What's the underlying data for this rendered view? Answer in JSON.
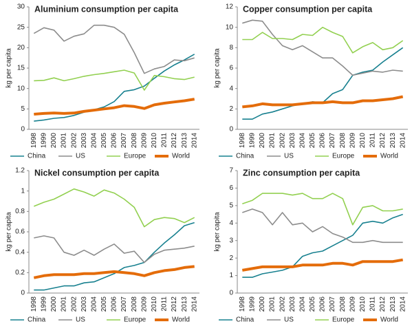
{
  "chart_data": [
    {
      "type": "line",
      "title": "Aluminium consumption per capita",
      "y_label": "kg per capita",
      "categories": [
        "1998",
        "1999",
        "2000",
        "2001",
        "2002",
        "2003",
        "2004",
        "2005",
        "2006",
        "2007",
        "2008",
        "2009",
        "2010",
        "2011",
        "2012",
        "2013",
        "2014"
      ],
      "ylim": [
        0,
        30
      ],
      "yticks": [
        0,
        5,
        10,
        15,
        20,
        25,
        30
      ],
      "series": [
        {
          "name": "China",
          "color": "#17808f",
          "values": [
            2.0,
            2.3,
            2.7,
            2.9,
            3.4,
            4.2,
            4.8,
            5.5,
            6.8,
            9.3,
            9.7,
            10.6,
            12.5,
            14.3,
            15.8,
            17.0,
            18.4
          ]
        },
        {
          "name": "US",
          "color": "#8c8c8c",
          "values": [
            23.5,
            24.9,
            24.3,
            21.6,
            22.8,
            23.4,
            25.5,
            25.5,
            25.0,
            23.3,
            18.8,
            13.7,
            14.8,
            15.4,
            17.0,
            16.8,
            17.5
          ]
        },
        {
          "name": "Europe",
          "color": "#92d050",
          "values": [
            11.9,
            12.0,
            12.6,
            11.9,
            12.4,
            13.0,
            13.4,
            13.7,
            14.1,
            14.5,
            13.8,
            9.6,
            13.2,
            12.9,
            12.4,
            12.2,
            12.8
          ]
        },
        {
          "name": "World",
          "color": "#e46c0a",
          "values": [
            3.7,
            3.9,
            4.0,
            3.9,
            4.0,
            4.4,
            4.7,
            5.0,
            5.3,
            5.8,
            5.6,
            5.1,
            6.0,
            6.4,
            6.7,
            7.0,
            7.4
          ]
        }
      ]
    },
    {
      "type": "line",
      "title": "Copper consumption per capita",
      "y_label": "kg per capita",
      "categories": [
        "1998",
        "1999",
        "2000",
        "2001",
        "2002",
        "2003",
        "2004",
        "2005",
        "2006",
        "2007",
        "2008",
        "2009",
        "2010",
        "2011",
        "2012",
        "2013",
        "2014"
      ],
      "ylim": [
        0,
        12
      ],
      "yticks": [
        0,
        2,
        4,
        6,
        8,
        10,
        12
      ],
      "series": [
        {
          "name": "China",
          "color": "#17808f",
          "values": [
            1.0,
            1.0,
            1.5,
            1.7,
            2.0,
            2.3,
            2.5,
            2.7,
            2.6,
            3.5,
            3.9,
            5.3,
            5.6,
            5.8,
            6.6,
            7.3,
            8.0
          ]
        },
        {
          "name": "US",
          "color": "#8c8c8c",
          "values": [
            10.4,
            10.7,
            10.6,
            9.3,
            8.2,
            7.8,
            8.2,
            7.6,
            7.0,
            7.0,
            6.2,
            5.3,
            5.5,
            5.7,
            5.6,
            5.8,
            5.7
          ]
        },
        {
          "name": "Europe",
          "color": "#92d050",
          "values": [
            8.8,
            8.8,
            9.5,
            8.9,
            8.9,
            8.8,
            9.3,
            9.2,
            10.0,
            9.5,
            9.1,
            7.5,
            8.1,
            8.5,
            7.8,
            8.0,
            8.7
          ]
        },
        {
          "name": "World",
          "color": "#e46c0a",
          "values": [
            2.2,
            2.3,
            2.5,
            2.4,
            2.4,
            2.4,
            2.5,
            2.6,
            2.6,
            2.7,
            2.6,
            2.6,
            2.8,
            2.8,
            2.9,
            3.0,
            3.2
          ]
        }
      ]
    },
    {
      "type": "line",
      "title": "Nickel consumption per capita",
      "y_label": "kg per capita",
      "categories": [
        "1998",
        "1999",
        "2000",
        "2001",
        "2002",
        "2003",
        "2004",
        "2005",
        "2006",
        "2007",
        "2008",
        "2009",
        "2010",
        "2011",
        "2012",
        "2013",
        "2014"
      ],
      "ylim": [
        0,
        1.2
      ],
      "yticks": [
        0,
        0.2,
        0.4,
        0.6,
        0.8,
        1,
        1.2
      ],
      "series": [
        {
          "name": "China",
          "color": "#17808f",
          "values": [
            0.03,
            0.03,
            0.05,
            0.07,
            0.07,
            0.1,
            0.11,
            0.15,
            0.19,
            0.25,
            0.27,
            0.3,
            0.4,
            0.49,
            0.57,
            0.66,
            0.69
          ]
        },
        {
          "name": "US",
          "color": "#8c8c8c",
          "values": [
            0.54,
            0.56,
            0.54,
            0.4,
            0.37,
            0.42,
            0.37,
            0.43,
            0.48,
            0.39,
            0.41,
            0.3,
            0.38,
            0.42,
            0.43,
            0.44,
            0.46
          ]
        },
        {
          "name": "Europe",
          "color": "#92d050",
          "values": [
            0.85,
            0.89,
            0.92,
            0.97,
            1.02,
            0.99,
            0.95,
            1.01,
            0.98,
            0.92,
            0.84,
            0.65,
            0.72,
            0.74,
            0.73,
            0.69,
            0.74
          ]
        },
        {
          "name": "World",
          "color": "#e46c0a",
          "values": [
            0.15,
            0.17,
            0.18,
            0.18,
            0.18,
            0.19,
            0.19,
            0.2,
            0.21,
            0.2,
            0.19,
            0.17,
            0.2,
            0.22,
            0.23,
            0.25,
            0.26
          ]
        }
      ]
    },
    {
      "type": "line",
      "title": "Zinc consumption per capita",
      "y_label": "kg per capita",
      "categories": [
        "1998",
        "1999",
        "2000",
        "2001",
        "2002",
        "2003",
        "2004",
        "2005",
        "2006",
        "2007",
        "2008",
        "2009",
        "2010",
        "2011",
        "2012",
        "2013",
        "2014"
      ],
      "ylim": [
        0,
        7
      ],
      "yticks": [
        0,
        1,
        2,
        3,
        4,
        5,
        6,
        7
      ],
      "series": [
        {
          "name": "China",
          "color": "#17808f",
          "values": [
            0.9,
            0.9,
            1.1,
            1.2,
            1.3,
            1.5,
            2.1,
            2.3,
            2.4,
            2.7,
            3.0,
            3.3,
            4.0,
            4.1,
            4.0,
            4.3,
            4.5
          ]
        },
        {
          "name": "US",
          "color": "#8c8c8c",
          "values": [
            4.6,
            4.8,
            4.6,
            3.9,
            4.6,
            3.9,
            4.0,
            3.5,
            3.8,
            3.4,
            3.2,
            2.9,
            2.9,
            3.0,
            2.9,
            2.9,
            2.9
          ]
        },
        {
          "name": "Europe",
          "color": "#92d050",
          "values": [
            5.1,
            5.3,
            5.7,
            5.7,
            5.7,
            5.6,
            5.7,
            5.4,
            5.4,
            5.7,
            5.4,
            3.9,
            4.9,
            5.0,
            4.7,
            4.7,
            4.8
          ]
        },
        {
          "name": "World",
          "color": "#e46c0a",
          "values": [
            1.3,
            1.4,
            1.5,
            1.5,
            1.5,
            1.5,
            1.6,
            1.6,
            1.6,
            1.7,
            1.7,
            1.6,
            1.8,
            1.8,
            1.8,
            1.8,
            1.9
          ]
        }
      ]
    }
  ]
}
